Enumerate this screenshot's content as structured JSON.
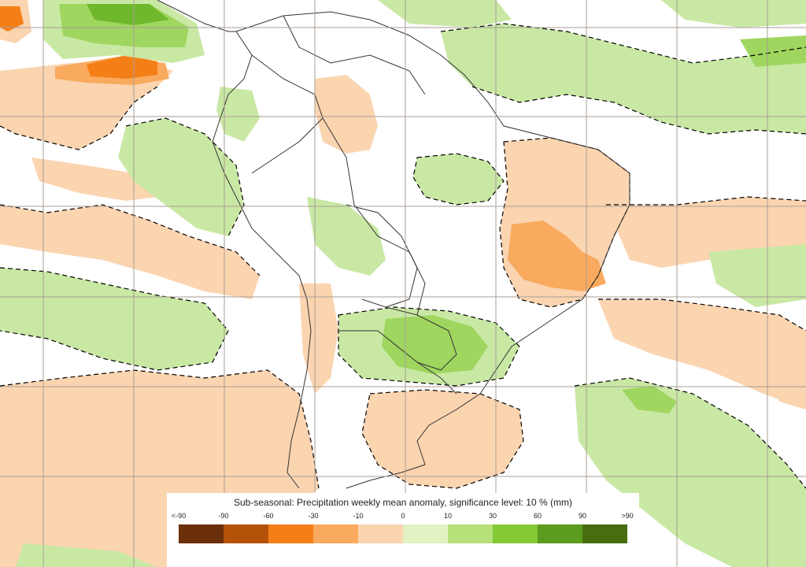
{
  "legend": {
    "title": "Sub-seasonal: Precipitation weekly mean anomaly, significance level: 10 % (mm)",
    "tick_labels": [
      "<-90",
      "-90",
      "-60",
      "-30",
      "-10",
      "0",
      "10",
      "30",
      "60",
      "90",
      ">90"
    ],
    "colors": [
      "#6b2f0a",
      "#b4520a",
      "#f57f17",
      "#f9aa5e",
      "#fbd4b0",
      "#e2f2c2",
      "#b5e07a",
      "#84c936",
      "#5b9b1e",
      "#476d10"
    ]
  },
  "map_colors": {
    "positive_light": "#c9e8a4",
    "positive_mid": "#9fd65f",
    "positive_strong": "#6fb82c",
    "negative_light": "#fbd4b0",
    "negative_mid": "#f9aa5e",
    "negative_strong": "#f57f17",
    "coast": "#333333",
    "contour": "#000000",
    "grid": "#a89e94"
  },
  "icons": {
    "significance_contour": "dashed-contour-line",
    "coastline": "coastline-line"
  }
}
